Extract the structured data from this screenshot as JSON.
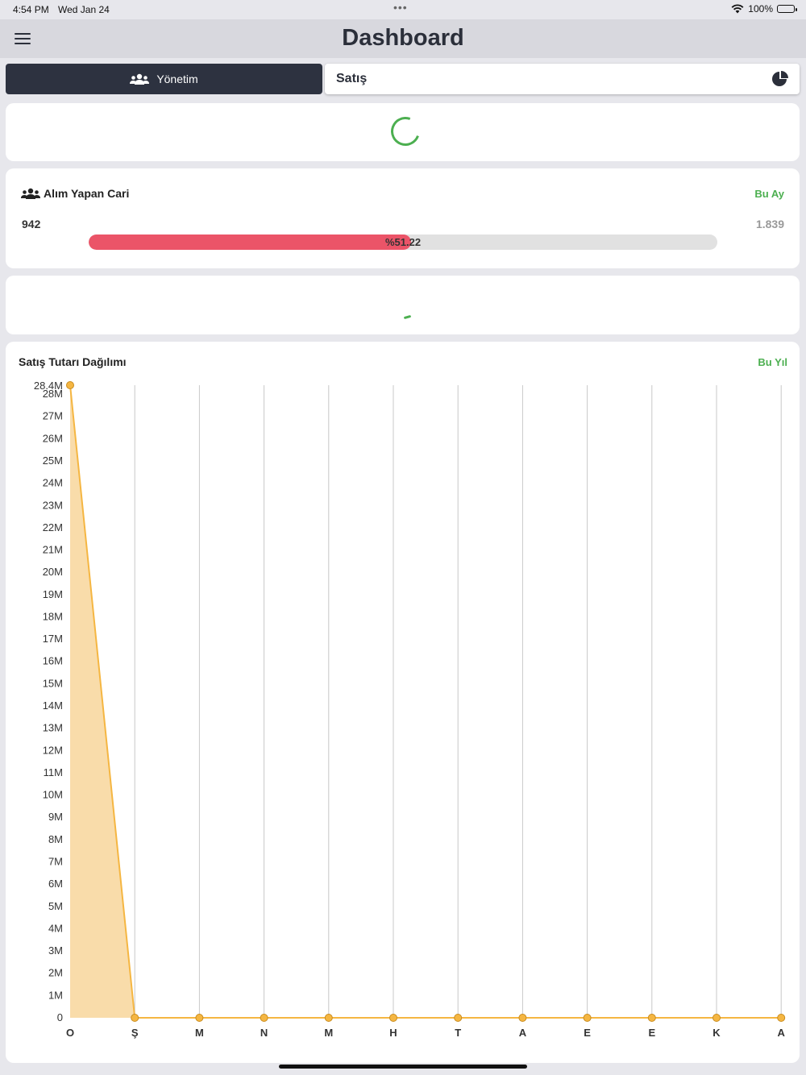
{
  "status_bar": {
    "time": "4:54 PM",
    "date": "Wed Jan 24",
    "battery": "100%"
  },
  "nav": {
    "title": "Dashboard",
    "menu_icon": "hamburger-icon"
  },
  "segments": {
    "management": {
      "label": "Yönetim",
      "icon": "users-icon"
    },
    "sales": {
      "label": "Satış",
      "icon": "pie-chart-icon"
    }
  },
  "buyers_card": {
    "title": "Alım Yapan Cari",
    "icon": "users-icon",
    "period": "Bu Ay",
    "value": "942",
    "target": "1.839",
    "percent_label": "%51.22",
    "progress": 0.5122,
    "progress_color": "#eb5468"
  },
  "accent_color": "#4caf50",
  "chart_card": {
    "title": "Satış Tutarı Dağılımı",
    "period": "Bu Yıl"
  },
  "chart_data": {
    "type": "area",
    "categories": [
      "O",
      "Ş",
      "M",
      "N",
      "M",
      "H",
      "T",
      "A",
      "E",
      "E",
      "K",
      "A"
    ],
    "values": [
      28400000,
      0,
      0,
      0,
      0,
      0,
      0,
      0,
      0,
      0,
      0,
      0
    ],
    "ylim": [
      0,
      28400000
    ],
    "yticks": [
      "0",
      "1M",
      "2M",
      "3M",
      "4M",
      "5M",
      "6M",
      "7M",
      "8M",
      "9M",
      "10M",
      "11M",
      "12M",
      "13M",
      "14M",
      "15M",
      "16M",
      "17M",
      "18M",
      "19M",
      "20M",
      "21M",
      "22M",
      "23M",
      "24M",
      "25M",
      "26M",
      "27M",
      "28M"
    ],
    "ymax_label": "28.4M",
    "line_color": "#f5b642",
    "fill_color": "#f9dcaa",
    "grid": "vertical"
  }
}
